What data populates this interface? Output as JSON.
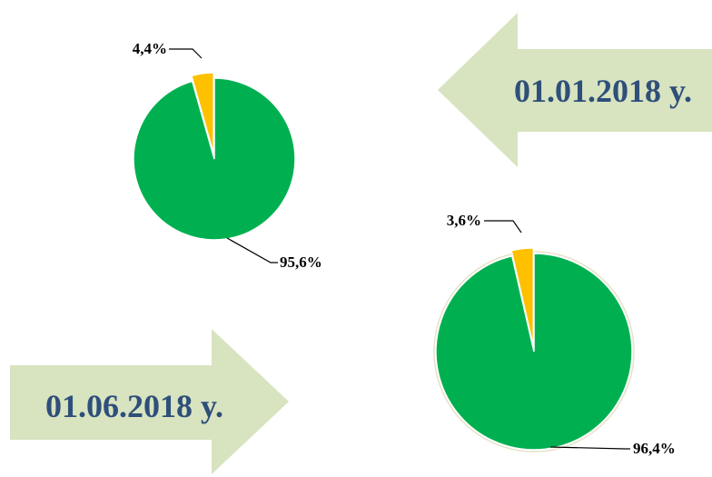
{
  "colors": {
    "arrow_fill": "#d8e3c0",
    "date_text": "#2e4f7a",
    "major_slice": "#00b050",
    "minor_slice": "#ffc000",
    "leader_line": "#000000"
  },
  "chart_data": [
    {
      "type": "pie",
      "values": [
        4.4,
        95.6
      ],
      "labels": [
        "4,4%",
        "95,6%"
      ],
      "colors": [
        "#ffc000",
        "#00b050"
      ]
    },
    {
      "type": "pie",
      "values": [
        3.6,
        96.4
      ],
      "labels": [
        "3,6%",
        "96,4%"
      ],
      "colors": [
        "#ffc000",
        "#00b050"
      ]
    }
  ],
  "arrows": [
    {
      "direction": "left",
      "label": "01.01.2018 y."
    },
    {
      "direction": "right",
      "label": "01.06.2018 y."
    }
  ]
}
